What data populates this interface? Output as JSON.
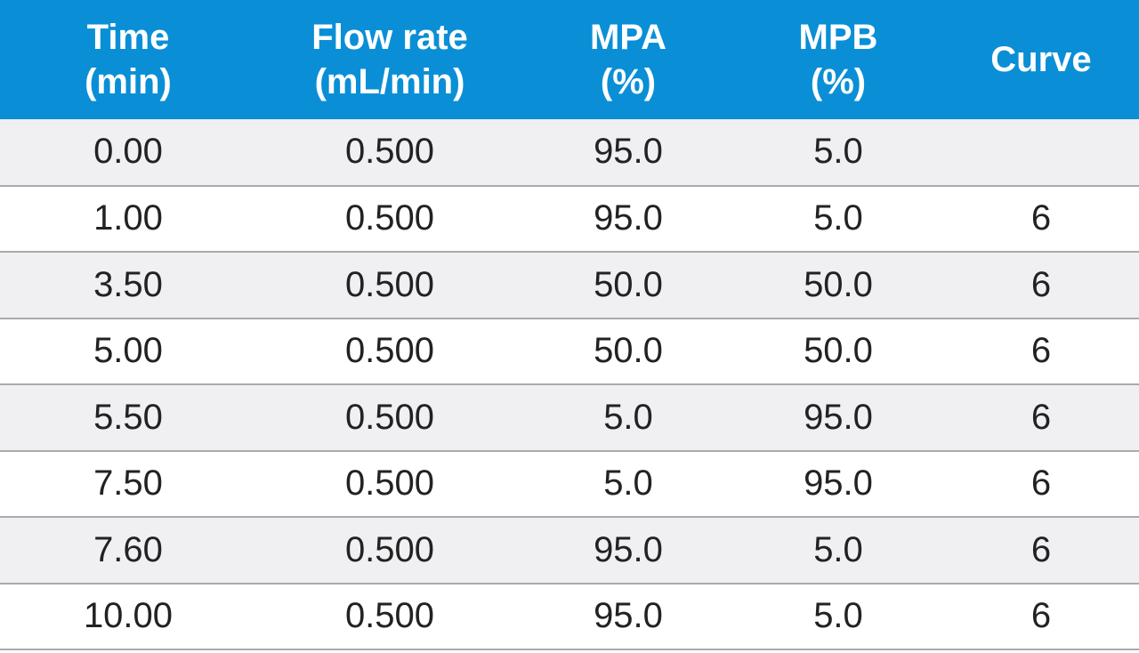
{
  "colors": {
    "header_background": "#0a8fd6",
    "header_text": "#ffffff",
    "row_alt_background": "#f0f0f3",
    "row_background": "#ffffff",
    "divider": "#a9aaad"
  },
  "header": {
    "time": [
      "Time",
      "(min)"
    ],
    "flow": [
      "Flow rate",
      "(mL/min)"
    ],
    "mpa": [
      "MPA",
      "(%)"
    ],
    "mpb": [
      "MPB",
      "(%)"
    ],
    "curve": [
      "Curve"
    ]
  },
  "rows": [
    {
      "time": "0.00",
      "flow": "0.500",
      "mpa": "95.0",
      "mpb": "5.0",
      "curve": ""
    },
    {
      "time": "1.00",
      "flow": "0.500",
      "mpa": "95.0",
      "mpb": "5.0",
      "curve": "6"
    },
    {
      "time": "3.50",
      "flow": "0.500",
      "mpa": "50.0",
      "mpb": "50.0",
      "curve": "6"
    },
    {
      "time": "5.00",
      "flow": "0.500",
      "mpa": "50.0",
      "mpb": "50.0",
      "curve": "6"
    },
    {
      "time": "5.50",
      "flow": "0.500",
      "mpa": "5.0",
      "mpb": "95.0",
      "curve": "6"
    },
    {
      "time": "7.50",
      "flow": "0.500",
      "mpa": "5.0",
      "mpb": "95.0",
      "curve": "6"
    },
    {
      "time": "7.60",
      "flow": "0.500",
      "mpa": "95.0",
      "mpb": "5.0",
      "curve": "6"
    },
    {
      "time": "10.00",
      "flow": "0.500",
      "mpa": "95.0",
      "mpb": "5.0",
      "curve": "6"
    }
  ]
}
